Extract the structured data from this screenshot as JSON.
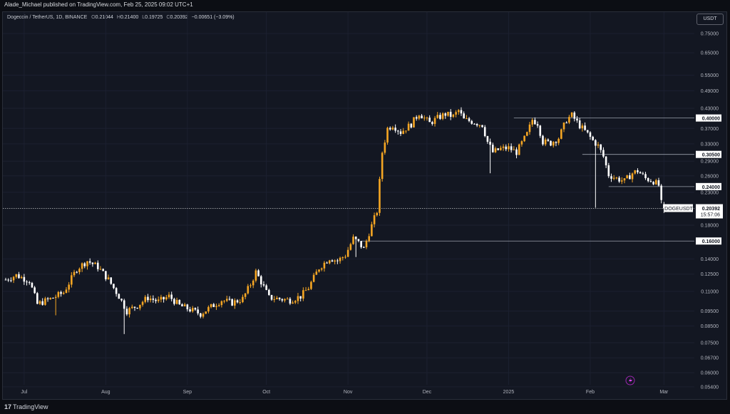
{
  "header": {
    "published_text": "Alade_Michael published on TradingView.com, Feb 25, 2025 09:02 UTC+1"
  },
  "legend": {
    "symbol": "Dogecoin / TetherUS, 1D, BINANCE",
    "open_label": "O",
    "open": "0.21044",
    "high_label": "H",
    "high": "0.21400",
    "low_label": "L",
    "low": "0.19725",
    "close_label": "C",
    "close": "0.20392",
    "change": "−0.00651 (−3.09%)"
  },
  "currency_button": "USDT",
  "footer": {
    "logo_mark": "17",
    "logo_text": "TradingView"
  },
  "colors": {
    "up": "#f5a623",
    "down": "#ffffff",
    "background": "#131722",
    "grid": "#1c2030",
    "level": "#9aa0ab"
  },
  "icons": {
    "flash": "lightning-icon"
  },
  "chart_data": {
    "type": "candlestick",
    "scale": "log",
    "grid": true,
    "y_ticks": [
      "0.75000",
      "0.65000",
      "0.55000",
      "0.49000",
      "0.43000",
      "0.37000",
      "0.33000",
      "0.29000",
      "0.26000",
      "0.23000",
      "0.18000",
      "0.14000",
      "0.12500",
      "0.11000",
      "0.09500",
      "0.08500",
      "0.07500",
      "0.06700",
      "0.06000",
      "0.05400"
    ],
    "x_ticks": [
      {
        "label": "Jul",
        "day": 0
      },
      {
        "label": "Aug",
        "day": 31
      },
      {
        "label": "Sep",
        "day": 62
      },
      {
        "label": "Oct",
        "day": 92
      },
      {
        "label": "Nov",
        "day": 123
      },
      {
        "label": "Dec",
        "day": 153
      },
      {
        "label": "2025",
        "day": 184
      },
      {
        "label": "Feb",
        "day": 215
      },
      {
        "label": "Mar",
        "day": 243
      }
    ],
    "horizontal_levels": [
      {
        "value": 0.4,
        "label": "0.40000",
        "from_day": 186
      },
      {
        "value": 0.305,
        "label": "0.30500",
        "from_day": 212
      },
      {
        "value": 0.24,
        "label": "0.24000",
        "from_day": 222
      },
      {
        "value": 0.16,
        "label": "0.16000",
        "from_day": 128
      }
    ],
    "current_price": {
      "symbol": "DOGEUSDT",
      "value": "0.20392",
      "countdown": "15:57:06"
    },
    "key_points": [
      [
        -7,
        0.12
      ],
      [
        -3,
        0.124
      ],
      [
        2,
        0.119
      ],
      [
        5,
        0.1
      ],
      [
        10,
        0.104
      ],
      [
        15,
        0.109
      ],
      [
        20,
        0.13
      ],
      [
        24,
        0.138
      ],
      [
        28,
        0.132
      ],
      [
        32,
        0.12
      ],
      [
        36,
        0.106
      ],
      [
        39,
        0.095
      ],
      [
        43,
        0.099
      ],
      [
        47,
        0.105
      ],
      [
        51,
        0.102
      ],
      [
        55,
        0.106
      ],
      [
        59,
        0.099
      ],
      [
        63,
        0.096
      ],
      [
        67,
        0.093
      ],
      [
        71,
        0.098
      ],
      [
        75,
        0.103
      ],
      [
        79,
        0.101
      ],
      [
        83,
        0.104
      ],
      [
        86,
        0.116
      ],
      [
        88,
        0.127
      ],
      [
        90,
        0.118
      ],
      [
        93,
        0.105
      ],
      [
        97,
        0.104
      ],
      [
        101,
        0.103
      ],
      [
        105,
        0.106
      ],
      [
        108,
        0.113
      ],
      [
        112,
        0.131
      ],
      [
        116,
        0.141
      ],
      [
        119,
        0.138
      ],
      [
        122,
        0.144
      ],
      [
        125,
        0.163
      ],
      [
        127,
        0.158
      ],
      [
        129,
        0.151
      ],
      [
        131,
        0.17
      ],
      [
        134,
        0.2
      ],
      [
        136,
        0.31
      ],
      [
        138,
        0.37
      ],
      [
        140,
        0.38
      ],
      [
        143,
        0.36
      ],
      [
        147,
        0.382
      ],
      [
        150,
        0.415
      ],
      [
        154,
        0.385
      ],
      [
        157,
        0.4
      ],
      [
        160,
        0.412
      ],
      [
        163,
        0.405
      ],
      [
        165,
        0.423
      ],
      [
        167,
        0.395
      ],
      [
        170,
        0.39
      ],
      [
        174,
        0.38
      ],
      [
        176,
        0.335
      ],
      [
        178,
        0.31
      ],
      [
        181,
        0.318
      ],
      [
        184,
        0.32
      ],
      [
        187,
        0.31
      ],
      [
        191,
        0.355
      ],
      [
        193,
        0.395
      ],
      [
        195,
        0.385
      ],
      [
        197,
        0.335
      ],
      [
        200,
        0.332
      ],
      [
        203,
        0.345
      ],
      [
        206,
        0.395
      ],
      [
        208,
        0.408
      ],
      [
        211,
        0.378
      ],
      [
        214,
        0.355
      ],
      [
        216,
        0.338
      ],
      [
        218,
        0.325
      ],
      [
        220,
        0.3
      ],
      [
        222,
        0.262
      ],
      [
        225,
        0.255
      ],
      [
        228,
        0.25
      ],
      [
        231,
        0.265
      ],
      [
        233,
        0.27
      ],
      [
        236,
        0.255
      ],
      [
        239,
        0.25
      ],
      [
        241,
        0.242
      ],
      [
        242,
        0.212
      ],
      [
        243,
        0.20392
      ]
    ]
  }
}
